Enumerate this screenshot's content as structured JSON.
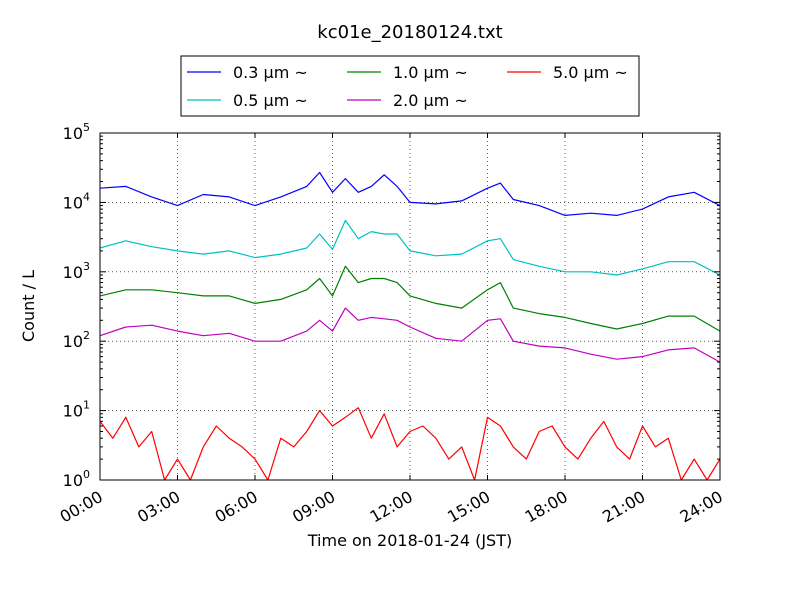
{
  "chart_data": {
    "type": "line",
    "title": "kc01e_20180124.txt",
    "xlabel": "Time on 2018-01-24 (JST)",
    "ylabel": "Count / L",
    "y_scale": "log",
    "ylim": [
      1,
      100000
    ],
    "xlim_hours": [
      0,
      24
    ],
    "x_ticks": [
      {
        "hour": 0,
        "label": "00:00"
      },
      {
        "hour": 3,
        "label": "03:00"
      },
      {
        "hour": 6,
        "label": "06:00"
      },
      {
        "hour": 9,
        "label": "09:00"
      },
      {
        "hour": 12,
        "label": "12:00"
      },
      {
        "hour": 15,
        "label": "15:00"
      },
      {
        "hour": 18,
        "label": "18:00"
      },
      {
        "hour": 21,
        "label": "21:00"
      },
      {
        "hour": 24,
        "label": "24:00"
      }
    ],
    "y_ticks": [
      {
        "value": 1,
        "base": "10",
        "exp": "0"
      },
      {
        "value": 10,
        "base": "10",
        "exp": "1"
      },
      {
        "value": 100,
        "base": "10",
        "exp": "2"
      },
      {
        "value": 1000,
        "base": "10",
        "exp": "3"
      },
      {
        "value": 10000,
        "base": "10",
        "exp": "4"
      },
      {
        "value": 100000,
        "base": "10",
        "exp": "5"
      }
    ],
    "grid": true,
    "legend_position": "top-center",
    "series": [
      {
        "name": "0.3 μm ~",
        "color": "#0000ff",
        "x": [
          0,
          1,
          2,
          3,
          4,
          5,
          6,
          7,
          8,
          8.5,
          9,
          9.5,
          10,
          10.5,
          11,
          11.5,
          12,
          13,
          14,
          15,
          15.5,
          16,
          17,
          18,
          19,
          20,
          21,
          22,
          23,
          24
        ],
        "y": [
          16000,
          17000,
          12000,
          9000,
          13000,
          12000,
          9000,
          12000,
          17000,
          27000,
          14000,
          22000,
          14000,
          17000,
          25000,
          17000,
          10000,
          9500,
          10500,
          16000,
          19000,
          11000,
          9000,
          6500,
          7000,
          6500,
          8000,
          12000,
          14000,
          9000
        ]
      },
      {
        "name": "0.5 μm ~",
        "color": "#00c0c0",
        "x": [
          0,
          1,
          2,
          3,
          4,
          5,
          6,
          7,
          8,
          8.5,
          9,
          9.5,
          10,
          10.5,
          11,
          11.5,
          12,
          13,
          14,
          15,
          15.5,
          16,
          17,
          18,
          19,
          20,
          21,
          22,
          23,
          24
        ],
        "y": [
          2200,
          2800,
          2300,
          2000,
          1800,
          2000,
          1600,
          1800,
          2200,
          3500,
          2100,
          5500,
          3000,
          3800,
          3500,
          3500,
          2000,
          1700,
          1800,
          2800,
          3000,
          1500,
          1200,
          1000,
          1000,
          900,
          1100,
          1400,
          1400,
          900
        ]
      },
      {
        "name": "1.0 μm ~",
        "color": "#008000",
        "x": [
          0,
          1,
          2,
          3,
          4,
          5,
          6,
          7,
          8,
          8.5,
          9,
          9.5,
          10,
          10.5,
          11,
          11.5,
          12,
          13,
          14,
          15,
          15.5,
          16,
          17,
          18,
          19,
          20,
          21,
          22,
          23,
          24
        ],
        "y": [
          450,
          550,
          550,
          500,
          450,
          450,
          350,
          400,
          550,
          800,
          450,
          1200,
          700,
          800,
          800,
          700,
          450,
          350,
          300,
          550,
          700,
          300,
          250,
          220,
          180,
          150,
          180,
          230,
          230,
          140
        ]
      },
      {
        "name": "2.0 μm ~",
        "color": "#c000c0",
        "x": [
          0,
          1,
          2,
          3,
          4,
          5,
          6,
          7,
          8,
          8.5,
          9,
          9.5,
          10,
          10.5,
          11,
          11.5,
          12,
          13,
          14,
          15,
          15.5,
          16,
          17,
          18,
          19,
          20,
          21,
          22,
          23,
          24
        ],
        "y": [
          120,
          160,
          170,
          140,
          120,
          130,
          100,
          100,
          140,
          200,
          140,
          300,
          200,
          220,
          210,
          200,
          160,
          110,
          100,
          200,
          210,
          100,
          85,
          80,
          65,
          55,
          60,
          75,
          80,
          50
        ]
      },
      {
        "name": "5.0 μm ~",
        "color": "#ff0000",
        "x": [
          0,
          0.5,
          1,
          1.5,
          2,
          2.5,
          3,
          3.5,
          4,
          4.5,
          5,
          5.5,
          6,
          6.5,
          7,
          7.5,
          8,
          8.5,
          9,
          9.5,
          10,
          10.5,
          11,
          11.5,
          12,
          12.5,
          13,
          13.5,
          14,
          14.5,
          15,
          15.5,
          16,
          16.5,
          17,
          17.5,
          18,
          18.5,
          19,
          19.5,
          20,
          20.5,
          21,
          21.5,
          22,
          22.5,
          23,
          23.5,
          24
        ],
        "y": [
          7,
          4,
          8,
          3,
          5,
          1,
          2,
          1,
          3,
          6,
          4,
          3,
          2,
          1,
          4,
          3,
          5,
          10,
          6,
          8,
          11,
          4,
          9,
          3,
          5,
          6,
          4,
          2,
          3,
          1,
          8,
          6,
          3,
          2,
          5,
          6,
          3,
          2,
          4,
          7,
          3,
          2,
          6,
          3,
          4,
          1,
          2,
          1,
          2
        ]
      }
    ]
  }
}
